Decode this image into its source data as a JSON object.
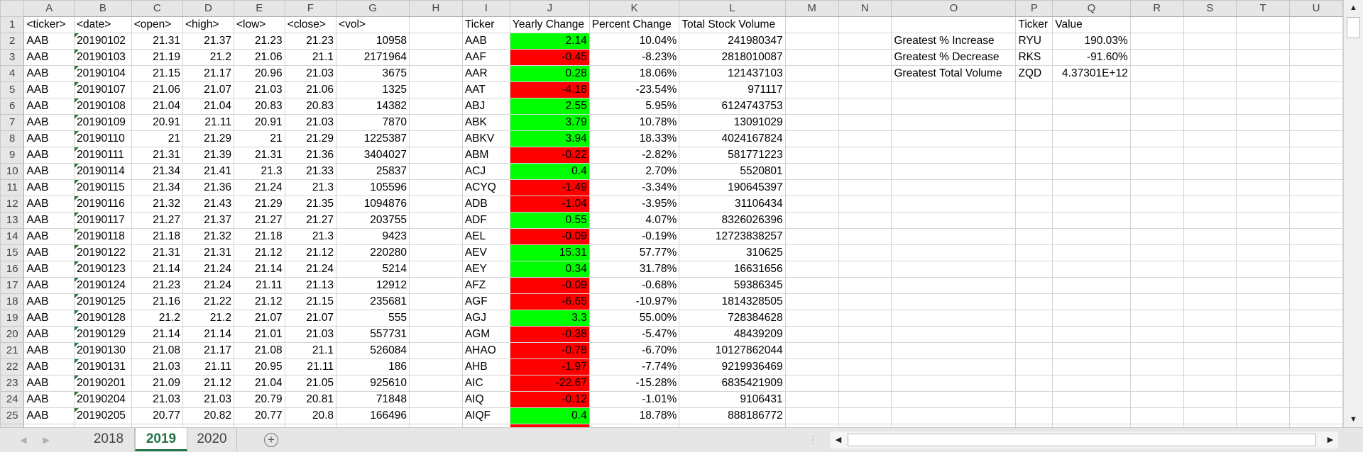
{
  "columns": [
    "A",
    "B",
    "C",
    "D",
    "E",
    "F",
    "G",
    "H",
    "I",
    "J",
    "K",
    "L",
    "M",
    "N",
    "O",
    "P",
    "Q",
    "R",
    "S",
    "T",
    "U"
  ],
  "header_row": [
    "<ticker>",
    "<date>",
    "<open>",
    "<high>",
    "<low>",
    "<close>",
    "<vol>",
    "",
    "Ticker",
    "Yearly Change",
    "Percent Change",
    "Total Stock Volume",
    "",
    "",
    "",
    "Ticker",
    "Value",
    "",
    "",
    "",
    ""
  ],
  "raw_rows": [
    [
      "AAB",
      "20190102",
      "21.31",
      "21.37",
      "21.23",
      "21.23",
      "10958"
    ],
    [
      "AAB",
      "20190103",
      "21.19",
      "21.2",
      "21.06",
      "21.1",
      "2171964"
    ],
    [
      "AAB",
      "20190104",
      "21.15",
      "21.17",
      "20.96",
      "21.03",
      "3675"
    ],
    [
      "AAB",
      "20190107",
      "21.06",
      "21.07",
      "21.03",
      "21.06",
      "1325"
    ],
    [
      "AAB",
      "20190108",
      "21.04",
      "21.04",
      "20.83",
      "20.83",
      "14382"
    ],
    [
      "AAB",
      "20190109",
      "20.91",
      "21.11",
      "20.91",
      "21.03",
      "7870"
    ],
    [
      "AAB",
      "20190110",
      "21",
      "21.29",
      "21",
      "21.29",
      "1225387"
    ],
    [
      "AAB",
      "20190111",
      "21.31",
      "21.39",
      "21.31",
      "21.36",
      "3404027"
    ],
    [
      "AAB",
      "20190114",
      "21.34",
      "21.41",
      "21.3",
      "21.33",
      "25837"
    ],
    [
      "AAB",
      "20190115",
      "21.34",
      "21.36",
      "21.24",
      "21.3",
      "105596"
    ],
    [
      "AAB",
      "20190116",
      "21.32",
      "21.43",
      "21.29",
      "21.35",
      "1094876"
    ],
    [
      "AAB",
      "20190117",
      "21.27",
      "21.37",
      "21.27",
      "21.27",
      "203755"
    ],
    [
      "AAB",
      "20190118",
      "21.18",
      "21.32",
      "21.18",
      "21.3",
      "9423"
    ],
    [
      "AAB",
      "20190122",
      "21.31",
      "21.31",
      "21.12",
      "21.12",
      "220280"
    ],
    [
      "AAB",
      "20190123",
      "21.14",
      "21.24",
      "21.14",
      "21.24",
      "5214"
    ],
    [
      "AAB",
      "20190124",
      "21.23",
      "21.24",
      "21.11",
      "21.13",
      "12912"
    ],
    [
      "AAB",
      "20190125",
      "21.16",
      "21.22",
      "21.12",
      "21.15",
      "235681"
    ],
    [
      "AAB",
      "20190128",
      "21.2",
      "21.2",
      "21.07",
      "21.07",
      "555"
    ],
    [
      "AAB",
      "20190129",
      "21.14",
      "21.14",
      "21.01",
      "21.03",
      "557731"
    ],
    [
      "AAB",
      "20190130",
      "21.08",
      "21.17",
      "21.08",
      "21.1",
      "526084"
    ],
    [
      "AAB",
      "20190131",
      "21.03",
      "21.11",
      "20.95",
      "21.11",
      "186"
    ],
    [
      "AAB",
      "20190201",
      "21.09",
      "21.12",
      "21.04",
      "21.05",
      "925610"
    ],
    [
      "AAB",
      "20190204",
      "21.03",
      "21.03",
      "20.79",
      "20.81",
      "71848"
    ],
    [
      "AAB",
      "20190205",
      "20.77",
      "20.82",
      "20.77",
      "20.8",
      "166496"
    ]
  ],
  "summary_rows": [
    [
      "AAB",
      "2.14",
      "10.04%",
      "241980347"
    ],
    [
      "AAF",
      "-0.45",
      "-8.23%",
      "2818010087"
    ],
    [
      "AAR",
      "0.28",
      "18.06%",
      "121437103"
    ],
    [
      "AAT",
      "-4.18",
      "-23.54%",
      "971117"
    ],
    [
      "ABJ",
      "2.55",
      "5.95%",
      "6124743753"
    ],
    [
      "ABK",
      "3.79",
      "10.78%",
      "13091029"
    ],
    [
      "ABKV",
      "3.94",
      "18.33%",
      "4024167824"
    ],
    [
      "ABM",
      "-0.22",
      "-2.82%",
      "581771223"
    ],
    [
      "ACJ",
      "0.4",
      "2.70%",
      "5520801"
    ],
    [
      "ACYQ",
      "-1.49",
      "-3.34%",
      "190645397"
    ],
    [
      "ADB",
      "-1.04",
      "-3.95%",
      "31106434"
    ],
    [
      "ADF",
      "0.55",
      "4.07%",
      "8326026396"
    ],
    [
      "AEL",
      "-0.09",
      "-0.19%",
      "12723838257"
    ],
    [
      "AEV",
      "15.31",
      "57.77%",
      "310625"
    ],
    [
      "AEY",
      "0.34",
      "31.78%",
      "16631656"
    ],
    [
      "AFZ",
      "-0.09",
      "-0.68%",
      "59386345"
    ],
    [
      "AGF",
      "-6.65",
      "-10.97%",
      "1814328505"
    ],
    [
      "AGJ",
      "3.3",
      "55.00%",
      "728384628"
    ],
    [
      "AGM",
      "-0.38",
      "-5.47%",
      "48439209"
    ],
    [
      "AHAO",
      "-0.78",
      "-6.70%",
      "10127862044"
    ],
    [
      "AHB",
      "-1.97",
      "-7.74%",
      "9219936469"
    ],
    [
      "AIC",
      "-22.67",
      "-15.28%",
      "6835421909"
    ],
    [
      "AIQ",
      "-0.12",
      "-1.01%",
      "9106431"
    ],
    [
      "AIQF",
      "0.4",
      "18.78%",
      "888186772"
    ]
  ],
  "greatest": [
    [
      "Greatest % Increase",
      "RYU",
      "190.03%"
    ],
    [
      "Greatest % Decrease",
      "RKS",
      "-91.60%"
    ],
    [
      "Greatest Total Volume",
      "ZQD",
      "4.37301E+12"
    ]
  ],
  "colors": {
    "positive": "#00ff00",
    "negative": "#ff0000",
    "accent": "#217346"
  },
  "sheets": [
    {
      "label": "2018",
      "active": false
    },
    {
      "label": "2019",
      "active": true
    },
    {
      "label": "2020",
      "active": false
    }
  ],
  "icons": {
    "nav_prev": "◀",
    "nav_next": "▶",
    "add_sheet": "⊕",
    "scroll_up": "▲",
    "scroll_down": "▼",
    "scroll_left": "◀",
    "scroll_right": "▶"
  }
}
